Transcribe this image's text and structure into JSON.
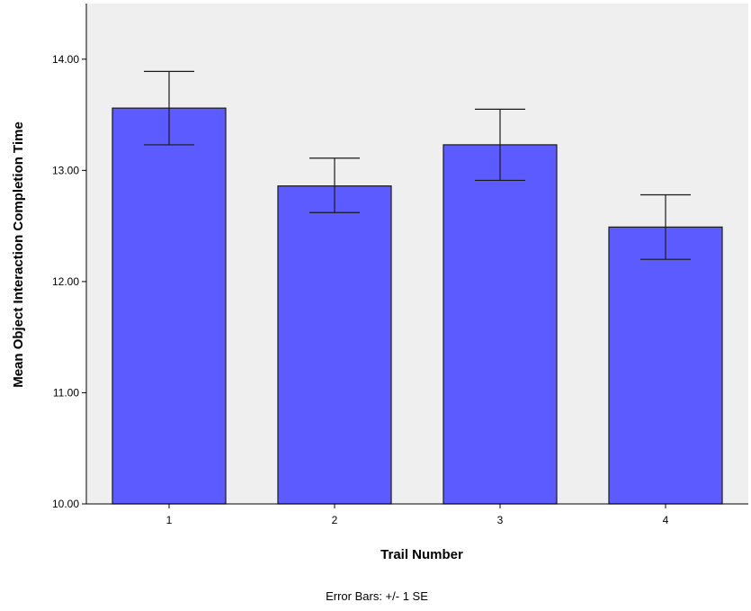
{
  "chart_data": {
    "type": "bar",
    "categories": [
      "1",
      "2",
      "3",
      "4"
    ],
    "values": [
      13.56,
      12.86,
      13.23,
      12.49
    ],
    "error_bars": {
      "lower": [
        13.23,
        12.62,
        12.91,
        12.2
      ],
      "upper": [
        13.89,
        13.11,
        13.55,
        12.78
      ]
    },
    "xlabel": "Trail Number",
    "ylabel": "Mean Object Interaction Completion Time",
    "ylim": [
      10.0,
      14.5
    ],
    "yticks": [
      10.0,
      11.0,
      12.0,
      13.0,
      14.0
    ],
    "ytick_labels": [
      "10.00",
      "11.00",
      "12.00",
      "13.00",
      "14.00"
    ],
    "footnote": "Error Bars: +/- 1 SE",
    "colors": {
      "bar_fill": "#5b5bff",
      "bar_stroke": "#1a1a1a",
      "plot_background": "#efefef",
      "axis": "#000000"
    },
    "grid": false
  }
}
